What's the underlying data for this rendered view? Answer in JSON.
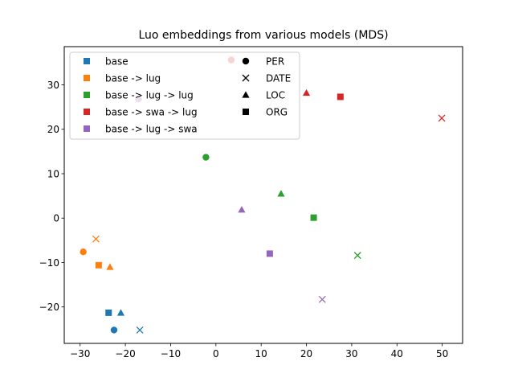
{
  "chart_data": {
    "type": "scatter",
    "title": "Luo embeddings from various models (MDS)",
    "xlabel": "",
    "ylabel": "",
    "xlim": [
      -33.5,
      54.5
    ],
    "ylim": [
      -28.2,
      38.6
    ],
    "xticks": [
      -30,
      -20,
      -10,
      0,
      10,
      20,
      30,
      40,
      50
    ],
    "yticks": [
      -20,
      -10,
      0,
      10,
      20,
      30
    ],
    "xtick_labels": [
      "−30",
      "−20",
      "−10",
      "0",
      "10",
      "20",
      "30",
      "40",
      "50"
    ],
    "ytick_labels": [
      "−20",
      "−10",
      "0",
      "10",
      "20",
      "30"
    ],
    "grid": false,
    "legend_placement": "top-left",
    "series": [
      {
        "name": "base",
        "color": "#1f77b4",
        "points": [
          {
            "label": "PER",
            "x": -22.5,
            "y": -25.2
          },
          {
            "label": "DATE",
            "x": -16.8,
            "y": -25.2
          },
          {
            "label": "LOC",
            "x": -21.0,
            "y": -21.3
          },
          {
            "label": "ORG",
            "x": -23.7,
            "y": -21.3
          }
        ]
      },
      {
        "name": "base -> lug",
        "color": "#ff7f0e",
        "points": [
          {
            "label": "PER",
            "x": -29.3,
            "y": -7.6
          },
          {
            "label": "DATE",
            "x": -26.5,
            "y": -4.7
          },
          {
            "label": "LOC",
            "x": -23.4,
            "y": -11.0
          },
          {
            "label": "ORG",
            "x": -25.9,
            "y": -10.6
          }
        ]
      },
      {
        "name": "base -> lug -> lug",
        "color": "#2ca02c",
        "points": [
          {
            "label": "PER",
            "x": -2.2,
            "y": 13.7
          },
          {
            "label": "DATE",
            "x": 31.3,
            "y": -8.4
          },
          {
            "label": "LOC",
            "x": 14.4,
            "y": 5.5
          },
          {
            "label": "ORG",
            "x": 21.6,
            "y": 0.1
          }
        ]
      },
      {
        "name": "base -> swa -> lug",
        "color": "#d62728",
        "points": [
          {
            "label": "PER",
            "x": 3.4,
            "y": 35.6
          },
          {
            "label": "DATE",
            "x": 49.9,
            "y": 22.5
          },
          {
            "label": "LOC",
            "x": 20.0,
            "y": 28.2
          },
          {
            "label": "ORG",
            "x": 27.5,
            "y": 27.3
          }
        ]
      },
      {
        "name": "base -> lug -> swa",
        "color": "#9467bd",
        "points": [
          {
            "label": "PER",
            "x": -17.1,
            "y": 26.8
          },
          {
            "label": "DATE",
            "x": 23.5,
            "y": -18.3
          },
          {
            "label": "LOC",
            "x": 5.7,
            "y": 1.9
          },
          {
            "label": "ORG",
            "x": 11.9,
            "y": -8.0
          }
        ]
      }
    ],
    "legend_colors": [
      {
        "label": "base",
        "color": "#1f77b4"
      },
      {
        "label": "base -> lug",
        "color": "#ff7f0e"
      },
      {
        "label": "base -> lug -> lug",
        "color": "#2ca02c"
      },
      {
        "label": "base -> swa -> lug",
        "color": "#d62728"
      },
      {
        "label": "base -> lug -> swa",
        "color": "#9467bd"
      }
    ],
    "legend_markers": [
      {
        "label": "PER",
        "marker": "circle"
      },
      {
        "label": "DATE",
        "marker": "x"
      },
      {
        "label": "LOC",
        "marker": "triangle"
      },
      {
        "label": "ORG",
        "marker": "square"
      }
    ],
    "marker_shapes": {
      "PER": "circle",
      "DATE": "x",
      "LOC": "triangle",
      "ORG": "square"
    }
  }
}
